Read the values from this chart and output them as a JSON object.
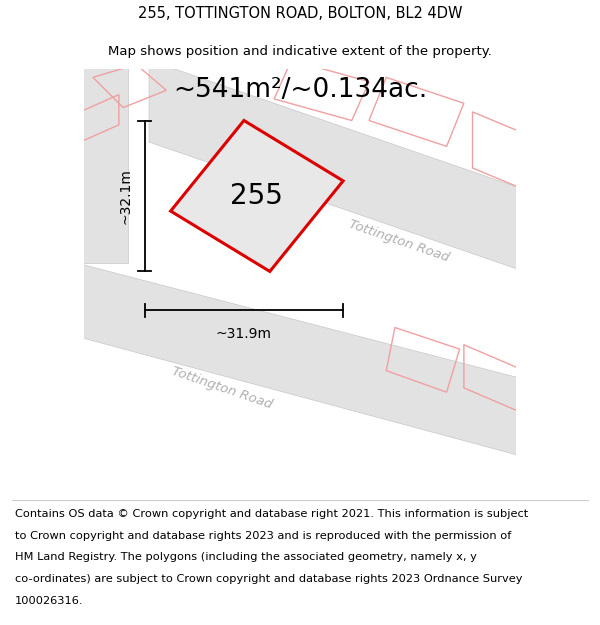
{
  "title_line1": "255, TOTTINGTON ROAD, BOLTON, BL2 4DW",
  "title_line2": "Map shows position and indicative extent of the property.",
  "area_text": "~541m²/~0.134ac.",
  "property_number": "255",
  "dim_width": "~31.9m",
  "dim_height": "~32.1m",
  "road_label1": "Tottington Road",
  "road_label2": "Tottington Road",
  "footer_lines": [
    "Contains OS data © Crown copyright and database right 2021. This information is subject",
    "to Crown copyright and database rights 2023 and is reproduced with the permission of",
    "HM Land Registry. The polygons (including the associated geometry, namely x, y",
    "co-ordinates) are subject to Crown copyright and database rights 2023 Ordnance Survey",
    "100026316."
  ],
  "bg_color": "#ffffff",
  "map_bg": "#f7f7f7",
  "road_fill": "#e2e2e2",
  "road_edge": "#c8c8c8",
  "prop_fill": "#e8e8e8",
  "prop_stroke": "#dd0000",
  "adj_stroke": "#f0a0a0",
  "road_text_color": "#b0b0b0",
  "title_fontsize": 10.5,
  "subtitle_fontsize": 9.5,
  "area_fontsize": 19,
  "number_fontsize": 20,
  "dim_fontsize": 10,
  "footer_fontsize": 8.2,
  "road_label_fontsize": 9.5
}
